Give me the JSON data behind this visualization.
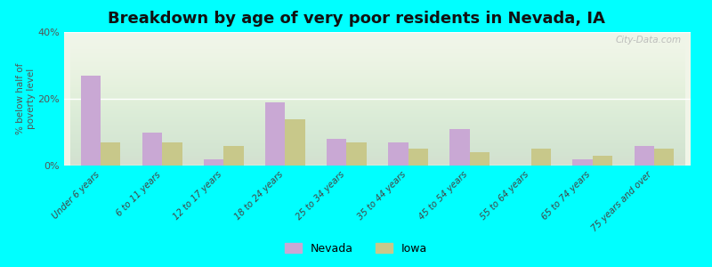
{
  "title": "Breakdown by age of very poor residents in Nevada, IA",
  "ylabel": "% below half of\npoverty level",
  "categories": [
    "Under 6 years",
    "6 to 11 years",
    "12 to 17 years",
    "18 to 24 years",
    "25 to 34 years",
    "35 to 44 years",
    "45 to 54 years",
    "55 to 64 years",
    "65 to 74 years",
    "75 years and over"
  ],
  "nevada_values": [
    27,
    10,
    2,
    19,
    8,
    7,
    11,
    0,
    2,
    6
  ],
  "iowa_values": [
    7,
    7,
    6,
    14,
    7,
    5,
    4,
    5,
    3,
    5
  ],
  "nevada_color": "#c9a8d4",
  "iowa_color": "#c8c88a",
  "background_color": "#00ffff",
  "plot_bg_top": "#f0f5e8",
  "plot_bg_bottom": "#e8f2e0",
  "ylim": [
    0,
    40
  ],
  "yticks": [
    0,
    20,
    40
  ],
  "ytick_labels": [
    "0%",
    "20%",
    "40%"
  ],
  "bar_width": 0.32,
  "title_fontsize": 13,
  "legend_labels": [
    "Nevada",
    "Iowa"
  ],
  "watermark": "City-Data.com"
}
